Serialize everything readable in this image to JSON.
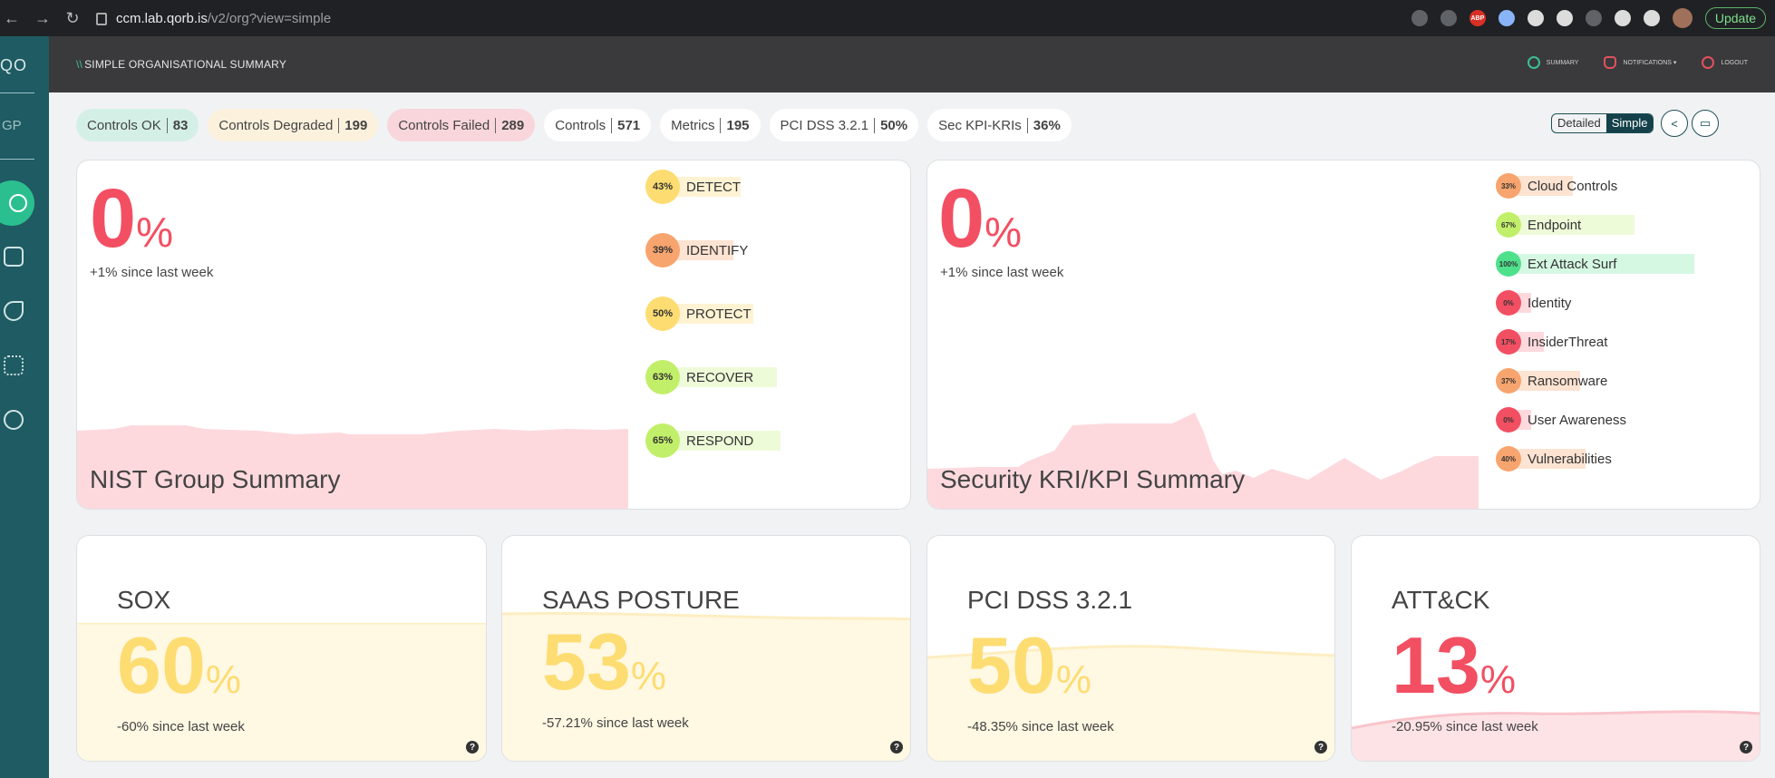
{
  "browser": {
    "url_host": "ccm.lab.qorb.is",
    "url_path": "/v2/org?view=simple",
    "update_label": "Update",
    "abp_label": "ABP"
  },
  "sidebar": {
    "logo": "QO",
    "org": "GP"
  },
  "header": {
    "title": "SIMPLE ORGANISATIONAL SUMMARY",
    "menu": [
      "SUMMARY",
      "NOTIFICATIONS ▾",
      "LOGOUT"
    ]
  },
  "pills": [
    {
      "label": "Controls OK",
      "value": "83",
      "status": "ok"
    },
    {
      "label": "Controls Degraded",
      "value": "199",
      "status": "deg"
    },
    {
      "label": "Controls Failed",
      "value": "289",
      "status": "fail"
    },
    {
      "label": "Controls",
      "value": "571",
      "status": "plain"
    },
    {
      "label": "Metrics",
      "value": "195",
      "status": "plain"
    },
    {
      "label": "PCI DSS 3.2.1",
      "value": "50%",
      "status": "plain"
    },
    {
      "label": "Sec KPI-KRIs",
      "value": "36%",
      "status": "plain"
    }
  ],
  "view_toggle": {
    "detailed": "Detailed",
    "simple": "Simple"
  },
  "nist": {
    "pct": "0",
    "pct_sign": "%",
    "since": "+1% since last week",
    "title": "NIST Group Summary",
    "items": [
      {
        "label": "DETECT",
        "pct": 43,
        "pct_text": "43%",
        "color": "#fddc72"
      },
      {
        "label": "IDENTIFY",
        "pct": 39,
        "pct_text": "39%",
        "color": "#f7a46e"
      },
      {
        "label": "PROTECT",
        "pct": 50,
        "pct_text": "50%",
        "color": "#fddc72"
      },
      {
        "label": "RECOVER",
        "pct": 63,
        "pct_text": "63%",
        "color": "#c2ef6a"
      },
      {
        "label": "RESPOND",
        "pct": 65,
        "pct_text": "65%",
        "color": "#c2ef6a"
      }
    ]
  },
  "kri": {
    "pct": "0",
    "pct_sign": "%",
    "since": "+1% since last week",
    "title": "Security KRI/KPI Summary",
    "items": [
      {
        "label": "Cloud Controls",
        "pct": 33,
        "pct_text": "33%",
        "color": "#f7a46e"
      },
      {
        "label": "Endpoint",
        "pct": 67,
        "pct_text": "67%",
        "color": "#c2ef6a"
      },
      {
        "label": "Ext Attack Surf",
        "pct": 100,
        "pct_text": "100%",
        "color": "#4fe08c"
      },
      {
        "label": "Identity",
        "pct": 0,
        "pct_text": "0%",
        "color": "#f24f62"
      },
      {
        "label": "InsiderThreat",
        "pct": 17,
        "pct_text": "17%",
        "color": "#f24f62"
      },
      {
        "label": "Ransomware",
        "pct": 37,
        "pct_text": "37%",
        "color": "#f7a46e"
      },
      {
        "label": "User Awareness",
        "pct": 0,
        "pct_text": "0%",
        "color": "#f24f62"
      },
      {
        "label": "Vulnerabilities",
        "pct": 40,
        "pct_text": "40%",
        "color": "#f7a46e"
      }
    ]
  },
  "frameworks": [
    {
      "title": "SOX",
      "pct": "60",
      "since": "-60% since last week",
      "color": "#fddc72",
      "bg": "#fff8e2"
    },
    {
      "title": "SAAS POSTURE",
      "pct": "53",
      "since": "-57.21% since last week",
      "color": "#fddc72",
      "bg": "#fff8e2"
    },
    {
      "title": "PCI DSS 3.2.1",
      "pct": "50",
      "since": "-48.35% since last week",
      "color": "#fddc72",
      "bg": "#fff8e2"
    },
    {
      "title": "ATT&CK",
      "pct": "13",
      "since": "-20.95% since last week",
      "color": "#f24f62",
      "bg": "#fde3e6"
    }
  ],
  "pct_sign": "%",
  "help_label": "?"
}
